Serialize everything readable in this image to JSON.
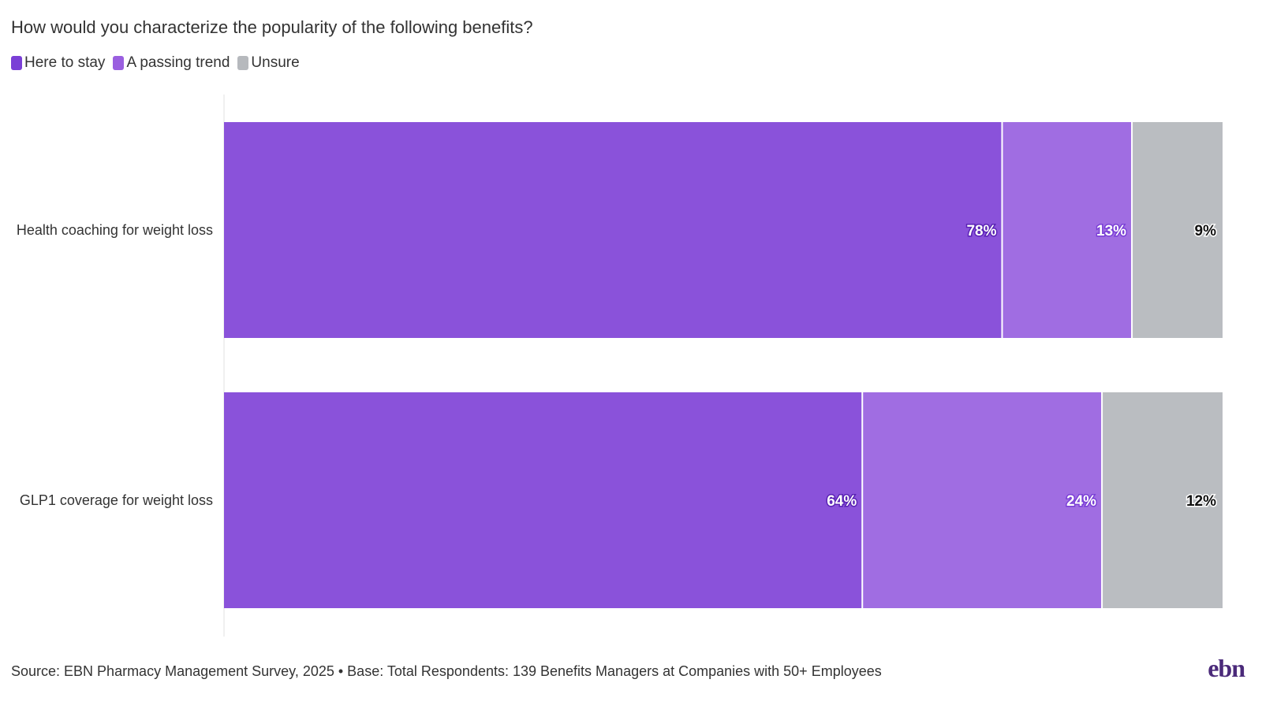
{
  "chart_data": {
    "type": "bar",
    "orientation": "horizontal",
    "stacked": true,
    "title": "How would you characterize the popularity of the following benefits?",
    "categories": [
      "Health coaching for weight loss",
      "GLP1 coverage for weight loss"
    ],
    "series": [
      {
        "name": "Here to stay",
        "values": [
          78,
          64
        ],
        "labels": [
          "78%",
          "64%"
        ],
        "color": "#8a52da"
      },
      {
        "name": "A passing trend",
        "values": [
          13,
          24
        ],
        "labels": [
          "13%",
          "24%"
        ],
        "color": "#a06de2"
      },
      {
        "name": "Unsure",
        "values": [
          9,
          12
        ],
        "labels": [
          "9%",
          "12%"
        ],
        "color": "#babdc1"
      }
    ],
    "xlim": [
      0,
      100
    ],
    "legend_position": "top-left",
    "grid": false,
    "source": "Source: EBN Pharmacy Management Survey, 2025 • Base: Total Respondents: 139 Benefits Managers at Companies with 50+ Employees"
  },
  "logo_text": "ebn"
}
